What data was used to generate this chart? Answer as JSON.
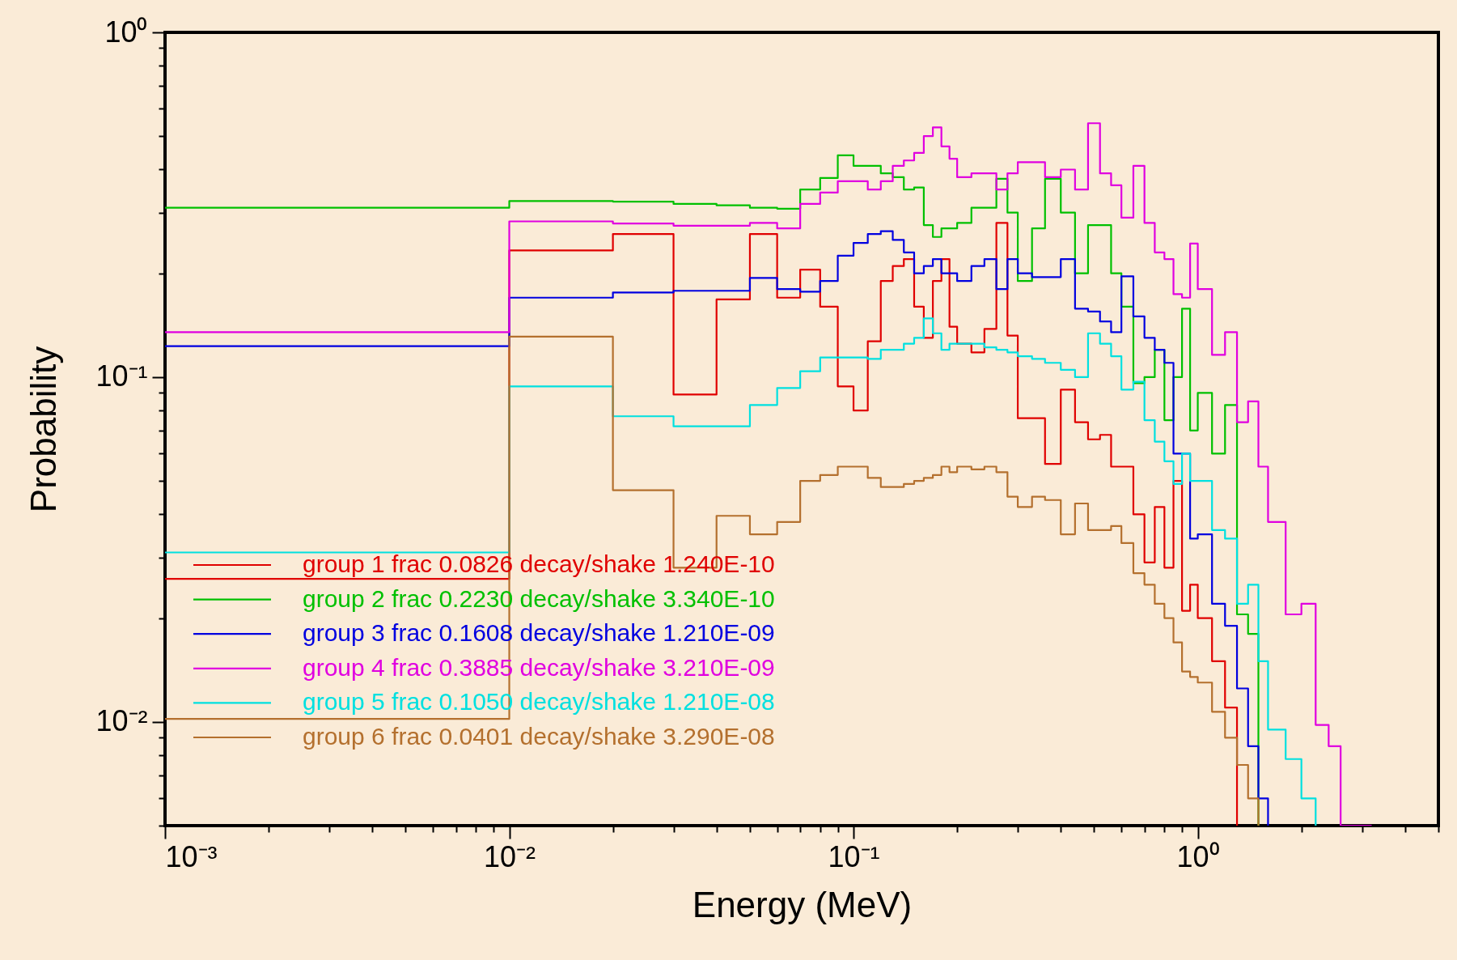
{
  "chart_data": {
    "type": "step",
    "xlabel": "Energy (MeV)",
    "ylabel": "Probability",
    "log": "xy",
    "grid": false,
    "legend": "bottom left",
    "xlim": [
      0.001,
      5
    ],
    "ylim": [
      0.005,
      1
    ],
    "xticks": [
      {
        "value": 0.001,
        "label": "10⁻³"
      },
      {
        "value": 0.002,
        "label": null
      },
      {
        "value": 0.003,
        "label": null
      },
      {
        "value": 0.004,
        "label": null
      },
      {
        "value": 0.005,
        "label": null
      },
      {
        "value": 0.006,
        "label": null
      },
      {
        "value": 0.007,
        "label": null
      },
      {
        "value": 0.008,
        "label": null
      },
      {
        "value": 0.009,
        "label": null
      },
      {
        "value": 0.01,
        "label": "10⁻²"
      },
      {
        "value": 0.02,
        "label": null
      },
      {
        "value": 0.03,
        "label": null
      },
      {
        "value": 0.04,
        "label": null
      },
      {
        "value": 0.05,
        "label": null
      },
      {
        "value": 0.06,
        "label": null
      },
      {
        "value": 0.07,
        "label": null
      },
      {
        "value": 0.08,
        "label": null
      },
      {
        "value": 0.09,
        "label": null
      },
      {
        "value": 0.1,
        "label": "10⁻¹"
      },
      {
        "value": 0.2,
        "label": null
      },
      {
        "value": 0.3,
        "label": null
      },
      {
        "value": 0.4,
        "label": null
      },
      {
        "value": 0.5,
        "label": null
      },
      {
        "value": 0.6,
        "label": null
      },
      {
        "value": 0.7,
        "label": null
      },
      {
        "value": 0.8,
        "label": null
      },
      {
        "value": 0.9,
        "label": null
      },
      {
        "value": 1,
        "label": "10⁰"
      },
      {
        "value": 2,
        "label": null
      },
      {
        "value": 3,
        "label": null
      },
      {
        "value": 4,
        "label": null
      },
      {
        "value": 5,
        "label": null
      }
    ],
    "yticks": [
      {
        "value": 0.005,
        "label": null
      },
      {
        "value": 0.006,
        "label": null
      },
      {
        "value": 0.007,
        "label": null
      },
      {
        "value": 0.008,
        "label": null
      },
      {
        "value": 0.009,
        "label": null
      },
      {
        "value": 0.01,
        "label": "10⁻²"
      },
      {
        "value": 0.02,
        "label": null
      },
      {
        "value": 0.03,
        "label": null
      },
      {
        "value": 0.04,
        "label": null
      },
      {
        "value": 0.05,
        "label": null
      },
      {
        "value": 0.06,
        "label": null
      },
      {
        "value": 0.07,
        "label": null
      },
      {
        "value": 0.08,
        "label": null
      },
      {
        "value": 0.09,
        "label": null
      },
      {
        "value": 0.1,
        "label": "10⁻¹"
      },
      {
        "value": 0.2,
        "label": null
      },
      {
        "value": 0.3,
        "label": null
      },
      {
        "value": 0.4,
        "label": null
      },
      {
        "value": 0.5,
        "label": null
      },
      {
        "value": 0.6,
        "label": null
      },
      {
        "value": 0.7,
        "label": null
      },
      {
        "value": 0.8,
        "label": null
      },
      {
        "value": 0.9,
        "label": null
      },
      {
        "value": 1,
        "label": "10⁰"
      }
    ],
    "x": [
      0.001,
      0.01,
      0.02,
      0.03,
      0.04,
      0.05,
      0.06,
      0.07,
      0.08,
      0.09,
      0.1,
      0.11,
      0.12,
      0.13,
      0.14,
      0.15,
      0.16,
      0.17,
      0.18,
      0.19,
      0.2,
      0.22,
      0.24,
      0.26,
      0.28,
      0.3,
      0.33,
      0.36,
      0.4,
      0.44,
      0.48,
      0.52,
      0.56,
      0.6,
      0.65,
      0.7,
      0.75,
      0.8,
      0.85,
      0.9,
      0.95,
      1.0,
      1.1,
      1.2,
      1.3,
      1.4,
      1.5,
      1.6,
      1.8,
      2.0,
      2.2,
      2.4,
      2.6,
      3.2
    ],
    "series": [
      {
        "name": "group 1 frac 0.0826 decay/shake 1.240E-10",
        "color": "#e00000",
        "values": [
          0.026,
          0.233,
          0.26,
          0.089,
          0.168,
          0.26,
          0.17,
          0.205,
          0.16,
          0.094,
          0.08,
          0.127,
          0.19,
          0.21,
          0.22,
          0.16,
          0.13,
          0.19,
          0.22,
          0.14,
          0.125,
          0.118,
          0.138,
          0.28,
          0.132,
          0.076,
          0.076,
          0.056,
          0.092,
          0.074,
          0.066,
          0.068,
          0.055,
          0.055,
          0.04,
          0.029,
          0.042,
          0.028,
          0.05,
          0.021,
          0.025,
          0.02,
          0.015,
          0.011,
          0.005,
          null,
          null,
          null,
          null,
          null,
          null,
          null,
          null,
          null
        ]
      },
      {
        "name": "group 2 frac 0.2230 decay/shake 3.340E-10",
        "color": "#00c000",
        "values": [
          0.31,
          0.324,
          0.323,
          0.318,
          0.315,
          0.31,
          0.308,
          0.35,
          0.378,
          0.44,
          0.41,
          0.41,
          0.39,
          0.38,
          0.35,
          0.355,
          0.276,
          0.255,
          0.27,
          0.27,
          0.28,
          0.31,
          0.31,
          0.376,
          0.3,
          0.19,
          0.27,
          0.376,
          0.3,
          0.2,
          0.276,
          0.276,
          0.2,
          0.16,
          0.096,
          0.1,
          0.12,
          0.075,
          0.1,
          0.158,
          0.07,
          0.09,
          0.06,
          0.083,
          0.0205,
          0.018,
          0.005,
          null,
          null,
          null,
          null,
          null,
          null,
          null
        ]
      },
      {
        "name": "group 3 frac 0.1608 decay/shake 1.210E-09",
        "color": "#0000e0",
        "values": [
          0.123,
          0.17,
          0.176,
          0.178,
          0.178,
          0.194,
          0.18,
          0.177,
          0.19,
          0.225,
          0.245,
          0.26,
          0.265,
          0.25,
          0.23,
          0.2,
          0.21,
          0.22,
          0.2,
          0.2,
          0.19,
          0.21,
          0.22,
          0.18,
          0.22,
          0.2,
          0.195,
          0.195,
          0.22,
          0.158,
          0.155,
          0.145,
          0.135,
          0.196,
          0.15,
          0.13,
          0.12,
          0.11,
          0.06,
          0.06,
          0.034,
          0.035,
          0.022,
          0.019,
          0.0125,
          0.0085,
          0.006,
          0.005,
          null,
          null,
          null,
          null,
          null,
          null
        ]
      },
      {
        "name": "group 4 frac 0.3885 decay/shake 3.210E-09",
        "color": "#e000e0",
        "values": [
          0.135,
          0.283,
          0.279,
          0.275,
          0.275,
          0.28,
          0.27,
          0.318,
          0.343,
          0.37,
          0.37,
          0.35,
          0.37,
          0.41,
          0.425,
          0.447,
          0.5,
          0.53,
          0.467,
          0.43,
          0.38,
          0.39,
          0.39,
          0.35,
          0.39,
          0.42,
          0.42,
          0.38,
          0.4,
          0.35,
          0.545,
          0.39,
          0.36,
          0.29,
          0.41,
          0.28,
          0.23,
          0.22,
          0.174,
          0.17,
          0.244,
          0.18,
          0.116,
          0.135,
          0.074,
          0.085,
          0.055,
          0.038,
          0.0205,
          0.022,
          0.0098,
          0.0085,
          0.005,
          0.005
        ]
      },
      {
        "name": "group 5 frac 0.1050 decay/shake 1.210E-08",
        "color": "#00e0e0",
        "values": [
          0.031,
          0.094,
          0.077,
          0.072,
          0.072,
          0.083,
          0.093,
          0.104,
          0.114,
          0.114,
          0.114,
          0.113,
          0.12,
          0.12,
          0.125,
          0.13,
          0.148,
          0.134,
          0.12,
          0.125,
          0.125,
          0.125,
          0.122,
          0.12,
          0.118,
          0.115,
          0.113,
          0.11,
          0.105,
          0.1,
          0.134,
          0.125,
          0.115,
          0.092,
          0.097,
          0.075,
          0.065,
          0.057,
          0.049,
          0.06,
          0.05,
          0.05,
          0.036,
          0.034,
          0.022,
          0.025,
          0.015,
          0.0095,
          0.0078,
          0.006,
          0.005,
          null,
          null,
          null
        ]
      },
      {
        "name": "group 6 frac 0.0401 decay/shake 3.290E-08",
        "color": "#b4702e",
        "values": [
          0.0102,
          0.131,
          0.047,
          0.028,
          0.0396,
          0.035,
          0.038,
          0.05,
          0.052,
          0.055,
          0.055,
          0.051,
          0.048,
          0.048,
          0.049,
          0.05,
          0.051,
          0.052,
          0.055,
          0.053,
          0.055,
          0.054,
          0.055,
          0.053,
          0.045,
          0.042,
          0.045,
          0.044,
          0.035,
          0.043,
          0.036,
          0.036,
          0.037,
          0.033,
          0.027,
          0.025,
          0.022,
          0.02,
          0.017,
          0.014,
          0.0135,
          0.013,
          0.0107,
          0.009,
          0.0075,
          0.006,
          0.005,
          null,
          null,
          null,
          null,
          null,
          null,
          null
        ]
      }
    ]
  }
}
